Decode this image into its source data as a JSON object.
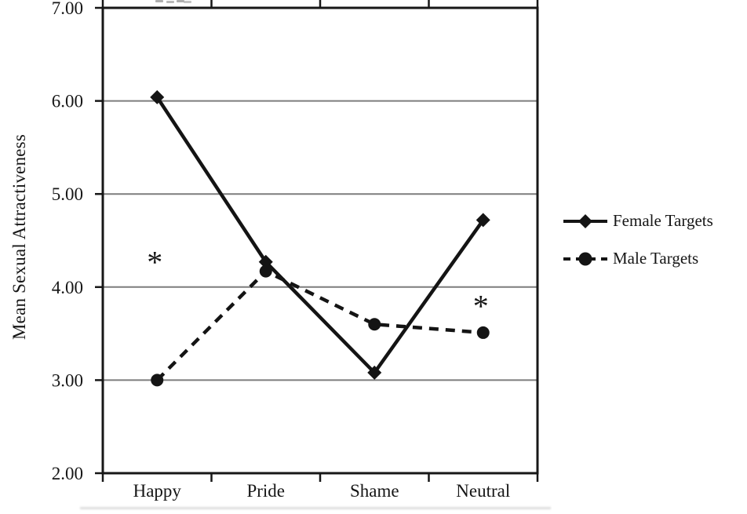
{
  "chart_data": {
    "type": "line",
    "categories": [
      "Happy",
      "Pride",
      "Shame",
      "Neutral"
    ],
    "series": [
      {
        "name": "Female Targets",
        "values": [
          6.04,
          4.27,
          3.08,
          4.72
        ],
        "line": "solid",
        "marker": "diamond",
        "color": "#141414"
      },
      {
        "name": "Male Targets",
        "values": [
          3.0,
          4.17,
          3.6,
          3.51
        ],
        "line": "dashed",
        "marker": "circle",
        "color": "#141414"
      }
    ],
    "title": "",
    "xlabel": "",
    "ylabel": "Mean Sexual Attractiveness",
    "ylim": [
      2.0,
      7.0
    ],
    "yticks": [
      7,
      6,
      5,
      4,
      3,
      2
    ],
    "ytick_labels": [
      "7.00",
      "6.00",
      "5.00",
      "4.00",
      "3.00",
      "2.00"
    ],
    "grid": true,
    "legend_position": "right",
    "annotations": [
      {
        "text": "*",
        "category_index": 0,
        "value": 4.33
      },
      {
        "text": "*",
        "category_index": 3,
        "value": 3.86
      }
    ],
    "colors": {
      "line": "#141414",
      "gridline": "#7d7d7d",
      "border": "#171717",
      "text": "#161616"
    }
  }
}
